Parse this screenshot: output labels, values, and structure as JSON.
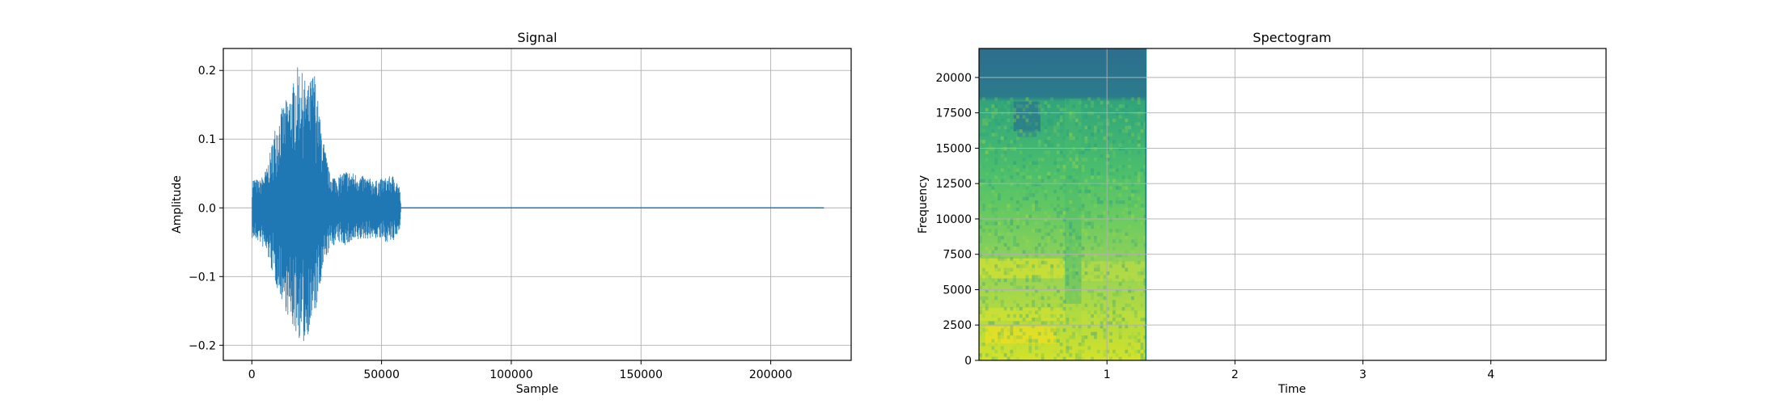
{
  "chart_data": [
    {
      "type": "line",
      "title": "Signal",
      "xlabel": "Sample",
      "ylabel": "Amplitude",
      "xlim": [
        -11000,
        231000
      ],
      "ylim": [
        -0.222,
        0.232
      ],
      "grid": true,
      "color": "#1f77b4",
      "xticks": [
        0,
        50000,
        100000,
        150000,
        200000
      ],
      "xtick_labels": [
        "0",
        "50000",
        "100000",
        "150000",
        "200000"
      ],
      "yticks": [
        -0.2,
        -0.1,
        0.0,
        0.1,
        0.2
      ],
      "ytick_labels": [
        "−0.2",
        "−0.1",
        "0.0",
        "0.1",
        "0.2"
      ],
      "n_samples": 220500,
      "envelope": [
        {
          "x": 0,
          "max": 0.045,
          "min": -0.045
        },
        {
          "x": 3000,
          "max": 0.04,
          "min": -0.05
        },
        {
          "x": 6000,
          "max": 0.06,
          "min": -0.07
        },
        {
          "x": 9000,
          "max": 0.12,
          "min": -0.11
        },
        {
          "x": 12000,
          "max": 0.15,
          "min": -0.14
        },
        {
          "x": 15000,
          "max": 0.17,
          "min": -0.17
        },
        {
          "x": 18000,
          "max": 0.21,
          "min": -0.19
        },
        {
          "x": 20000,
          "max": 0.19,
          "min": -0.2
        },
        {
          "x": 22000,
          "max": 0.18,
          "min": -0.18
        },
        {
          "x": 24000,
          "max": 0.205,
          "min": -0.16
        },
        {
          "x": 26000,
          "max": 0.14,
          "min": -0.13
        },
        {
          "x": 28000,
          "max": 0.09,
          "min": -0.08
        },
        {
          "x": 30000,
          "max": 0.05,
          "min": -0.06
        },
        {
          "x": 33000,
          "max": 0.045,
          "min": -0.05
        },
        {
          "x": 36000,
          "max": 0.055,
          "min": -0.055
        },
        {
          "x": 40000,
          "max": 0.05,
          "min": -0.05
        },
        {
          "x": 44000,
          "max": 0.045,
          "min": -0.045
        },
        {
          "x": 48000,
          "max": 0.04,
          "min": -0.045
        },
        {
          "x": 52000,
          "max": 0.045,
          "min": -0.05
        },
        {
          "x": 55000,
          "max": 0.048,
          "min": -0.05
        },
        {
          "x": 57000,
          "max": 0.03,
          "min": -0.03
        },
        {
          "x": 57500,
          "max": 0.0,
          "min": 0.0
        },
        {
          "x": 220500,
          "max": 0.0,
          "min": 0.0
        }
      ]
    },
    {
      "type": "heatmap",
      "title": "Spectogram",
      "xlabel": "Time",
      "ylabel": "Frequency",
      "xlim": [
        0,
        4.9
      ],
      "ylim": [
        0,
        22050
      ],
      "grid": true,
      "colormap": "viridis",
      "data_extent_x": [
        0,
        1.31
      ],
      "xticks": [
        1,
        2,
        3,
        4
      ],
      "xtick_labels": [
        "1",
        "2",
        "3",
        "4"
      ],
      "yticks": [
        0,
        2500,
        5000,
        7500,
        10000,
        12500,
        15000,
        17500,
        20000
      ],
      "ytick_labels": [
        "0",
        "2500",
        "5000",
        "7500",
        "10000",
        "12500",
        "15000",
        "17500",
        "20000"
      ]
    }
  ]
}
